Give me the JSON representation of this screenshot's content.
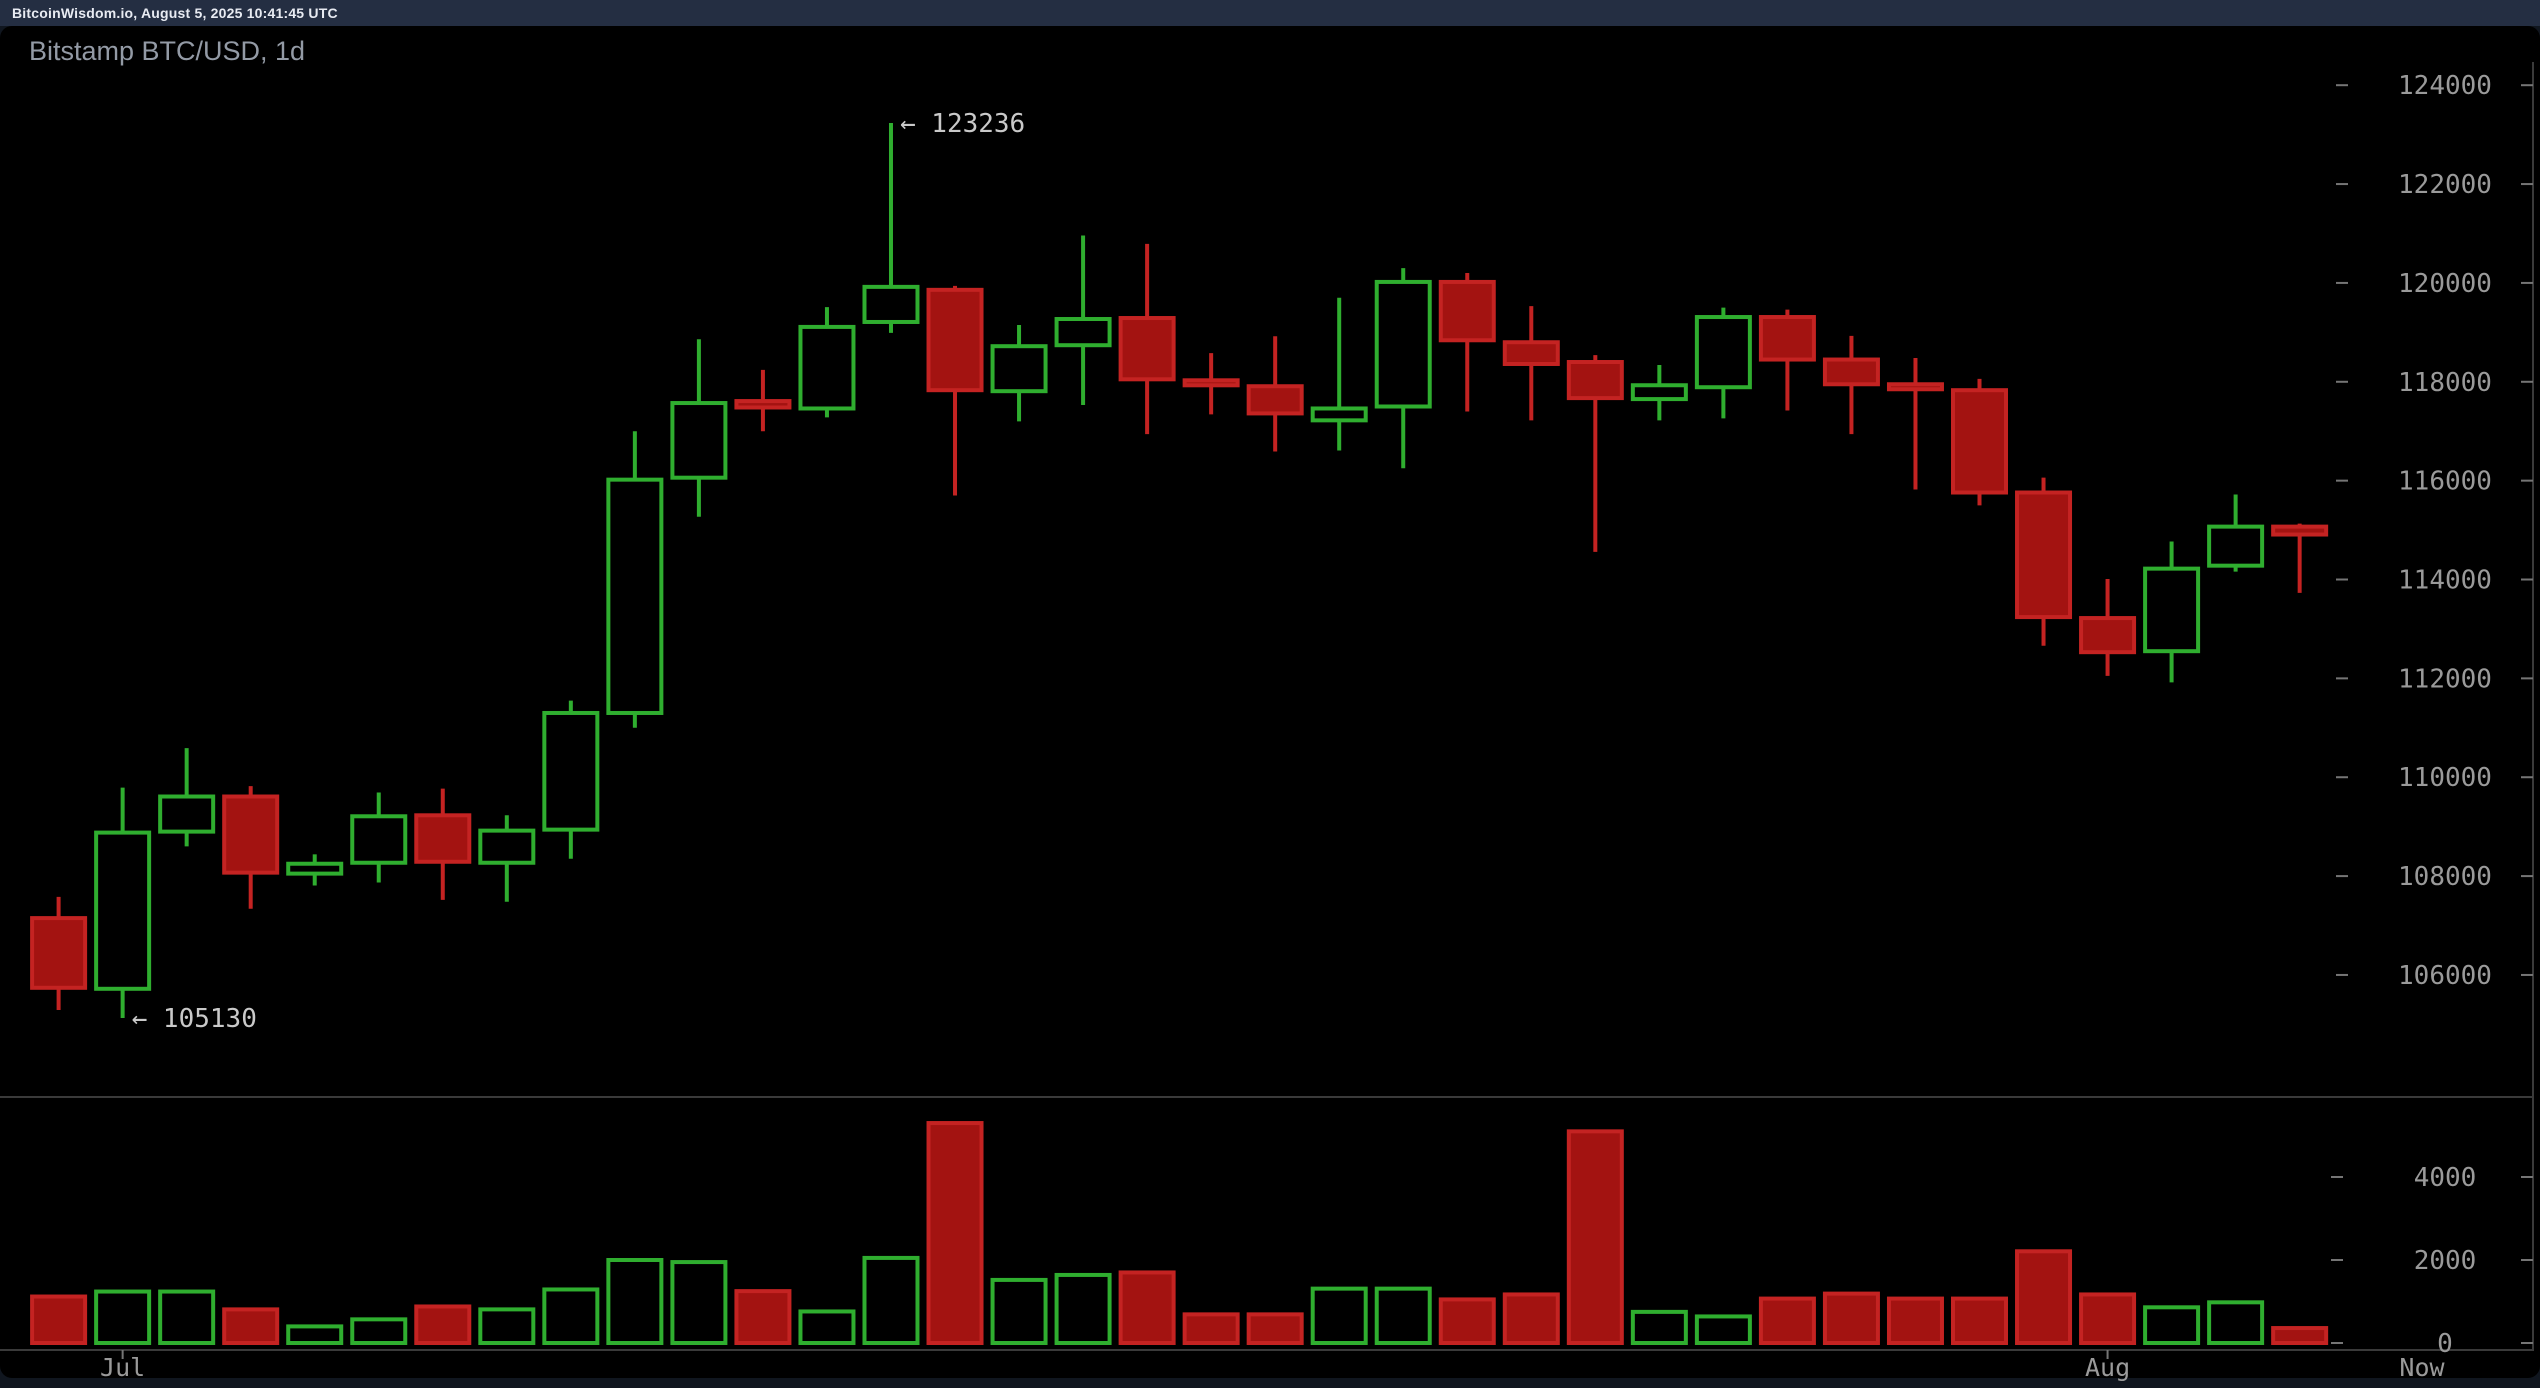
{
  "header": {
    "text": "BitcoinWisdom.io, August 5, 2025 10:41:45 UTC"
  },
  "chart": {
    "title": "Bitstamp BTC/USD, 1d"
  },
  "axes": {
    "price_ticks": [
      124000,
      122000,
      120000,
      118000,
      116000,
      114000,
      112000,
      110000,
      108000,
      106000
    ],
    "volume_ticks": [
      4000,
      2000,
      0
    ],
    "time_labels": [
      {
        "label": "Jul",
        "candle": 1
      },
      {
        "label": "Aug",
        "candle": 32
      },
      {
        "label": "Now",
        "candle": null
      }
    ]
  },
  "annotations": [
    {
      "text": "← 123236",
      "candle": 13,
      "point": "high"
    },
    {
      "text": "← 105130",
      "candle": 1,
      "point": "low"
    }
  ],
  "colors": {
    "background": "#000000",
    "page": "#10161f",
    "topbar": "#242e42",
    "up": "#2fae2f",
    "down_border": "#c42322",
    "down_fill": "#a31311",
    "axis_text": "#9a9a9a",
    "tick": "#757575",
    "divider": "#3a3a3a",
    "annotation_text": "#c9c9c9"
  },
  "chart_data": {
    "type": "candlestick+volume",
    "title": "Bitstamp BTC/USD, 1d",
    "exchange": "Bitstamp",
    "pair": "BTC/USD",
    "interval": "1d",
    "ylabel_right_ticks": [
      124000,
      122000,
      120000,
      118000,
      116000,
      114000,
      112000,
      110000,
      108000,
      106000
    ],
    "volume_axis_ticks": [
      4000,
      2000,
      0
    ],
    "x_axis_labels": [
      "Jul",
      "Aug",
      "Now"
    ],
    "high_annotation": 123236,
    "low_annotation": 105130,
    "columns": [
      "open",
      "high",
      "low",
      "close",
      "volume"
    ],
    "candles": [
      [
        107150,
        107580,
        105290,
        105740,
        1120
      ],
      [
        105720,
        109790,
        105130,
        108880,
        1240
      ],
      [
        108900,
        110590,
        108600,
        109610,
        1240
      ],
      [
        109610,
        109820,
        107340,
        108070,
        810
      ],
      [
        108050,
        108440,
        107810,
        108250,
        400
      ],
      [
        108270,
        109690,
        107870,
        109210,
        570
      ],
      [
        109230,
        109770,
        107520,
        108290,
        880
      ],
      [
        108270,
        109230,
        107480,
        108920,
        810
      ],
      [
        108940,
        111550,
        108350,
        111300,
        1290
      ],
      [
        111300,
        117000,
        111000,
        116020,
        2000
      ],
      [
        116060,
        118860,
        115270,
        117570,
        1950
      ],
      [
        117610,
        118240,
        117000,
        117480,
        1250
      ],
      [
        117460,
        119510,
        117280,
        119110,
        760
      ],
      [
        119210,
        123236,
        118990,
        119920,
        2050
      ],
      [
        119860,
        119940,
        115700,
        117830,
        5300
      ],
      [
        117810,
        119150,
        117200,
        118720,
        1520
      ],
      [
        118740,
        120960,
        117530,
        119270,
        1640
      ],
      [
        119290,
        120790,
        116940,
        118050,
        1700
      ],
      [
        118030,
        118580,
        117340,
        117930,
        690
      ],
      [
        117910,
        118920,
        116590,
        117360,
        690
      ],
      [
        117220,
        119700,
        116610,
        117460,
        1310
      ],
      [
        117500,
        120300,
        116250,
        120020,
        1310
      ],
      [
        120020,
        120200,
        117400,
        118840,
        1050
      ],
      [
        118800,
        119530,
        117220,
        118360,
        1170
      ],
      [
        118400,
        118540,
        114560,
        117670,
        5100
      ],
      [
        117650,
        118340,
        117220,
        117930,
        750
      ],
      [
        117890,
        119500,
        117260,
        119310,
        640
      ],
      [
        119310,
        119460,
        117420,
        118450,
        1070
      ],
      [
        118450,
        118930,
        116940,
        117950,
        1190
      ],
      [
        117950,
        118480,
        115820,
        117870,
        1070
      ],
      [
        117830,
        118060,
        115500,
        115760,
        1070
      ],
      [
        115760,
        116060,
        112660,
        113240,
        2210
      ],
      [
        113220,
        114010,
        112050,
        112530,
        1170
      ],
      [
        112550,
        114770,
        111920,
        114220,
        860
      ],
      [
        114280,
        115720,
        114160,
        115070,
        980
      ],
      [
        115070,
        115130,
        113730,
        114910,
        360
      ]
    ]
  }
}
